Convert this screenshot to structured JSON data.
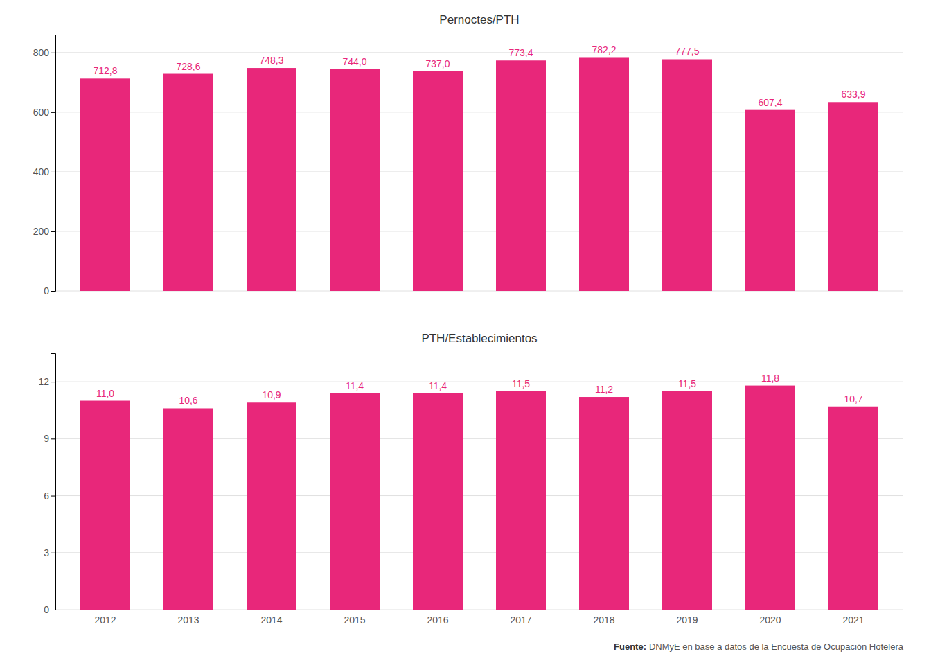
{
  "chart_data": [
    {
      "type": "bar",
      "title": "Pernoctes/PTH",
      "categories": [
        null,
        null,
        null,
        null,
        null,
        null,
        null,
        null,
        null,
        null
      ],
      "values": [
        712.8,
        728.6,
        748.3,
        744.0,
        737.0,
        773.4,
        782.2,
        777.5,
        607.4,
        633.9
      ],
      "value_labels": [
        "712,8",
        "728,6",
        "748,3",
        "744,0",
        "737,0",
        "773,4",
        "782,2",
        "777,5",
        "607,4",
        "633,9"
      ],
      "color": "#e8277a",
      "ylim": [
        0,
        860
      ],
      "yticks": [
        0,
        200,
        400,
        600,
        800
      ],
      "grid": true,
      "data_labels": true,
      "tick_labels": "y"
    },
    {
      "type": "bar",
      "title": "PTH/Establecimientos",
      "categories": [
        "2012",
        "2013",
        "2014",
        "2015",
        "2016",
        "2017",
        "2018",
        "2019",
        "2020",
        "2021"
      ],
      "values": [
        11.0,
        10.6,
        10.9,
        11.4,
        11.4,
        11.5,
        11.2,
        11.5,
        11.8,
        10.7
      ],
      "value_labels": [
        "11,0",
        "10,6",
        "10,9",
        "11,4",
        "11,4",
        "11,5",
        "11,2",
        "11,5",
        "11,8",
        "10,7"
      ],
      "color": "#e8277a",
      "ylim": [
        0,
        13.5
      ],
      "yticks": [
        0,
        3,
        6,
        9,
        12
      ],
      "grid": true,
      "data_labels": true,
      "annotations": [
        "Fuente:",
        "DNMyE en base a datos de la Encuesta de Ocupación Hotelera"
      ]
    }
  ]
}
